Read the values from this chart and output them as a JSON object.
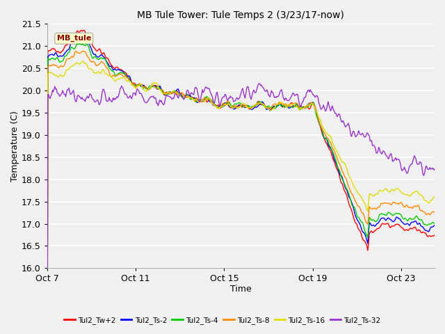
{
  "title": "MB Tule Tower: Tule Temps 2 (3/23/17-now)",
  "xlabel": "Time",
  "ylabel": "Temperature (C)",
  "ylim": [
    16.0,
    21.5
  ],
  "yticks": [
    16.0,
    16.5,
    17.0,
    17.5,
    18.0,
    18.5,
    19.0,
    19.5,
    20.0,
    20.5,
    21.0,
    21.5
  ],
  "xtick_labels": [
    "Oct 7",
    "Oct 11",
    "Oct 15",
    "Oct 19",
    "Oct 23"
  ],
  "xtick_positions": [
    0,
    4,
    8,
    12,
    16
  ],
  "total_days": 18,
  "background_color": "#f0f0f0",
  "grid_color": "#ffffff",
  "legend_labels": [
    "Tul2_Tw+2",
    "Tul2_Ts-2",
    "Tul2_Ts-4",
    "Tul2_Ts-8",
    "Tul2_Ts-16",
    "Tul2_Ts-32"
  ],
  "line_colors": [
    "#ff0000",
    "#0000ff",
    "#00cc00",
    "#ff8800",
    "#dddd00",
    "#9933cc"
  ],
  "watermark_text": "MB_tule",
  "watermark_color": "#880000",
  "watermark_bg": "#ffffcc",
  "watermark_border": "#aaaaaa"
}
